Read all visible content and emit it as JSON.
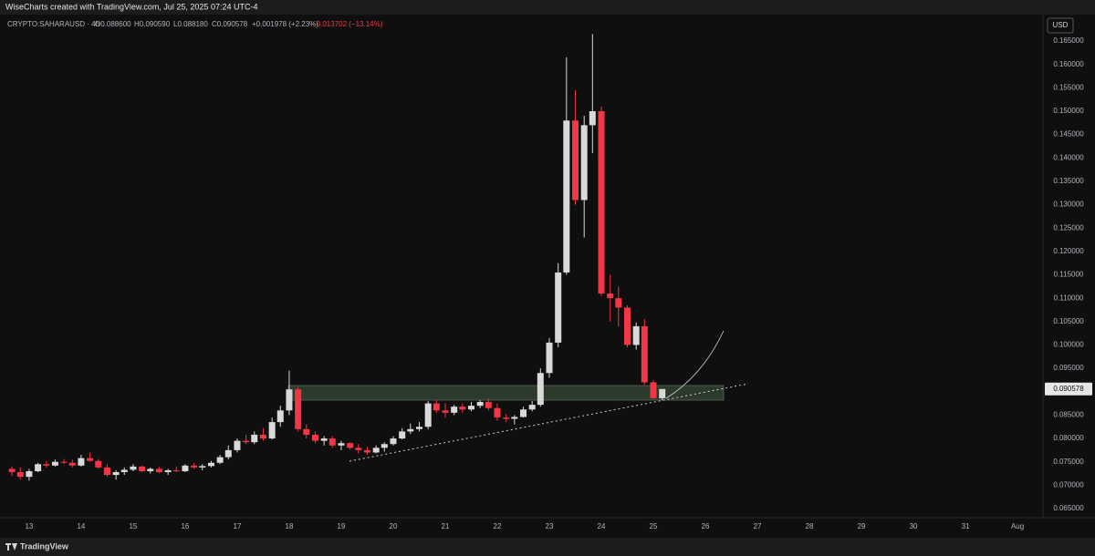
{
  "header": {
    "watermark": "WiseCharts created with TradingView.com, Jul 25, 2025 07:24 UTC-4",
    "symbol": "CRYPTO:SAHARAUSD · 4h",
    "open": "O0.088600",
    "high": "H0.090590",
    "low": "L0.088180",
    "close": "C0.090578",
    "change": "+0.001978 (+2.23%)",
    "change_red": "−0.013702 (−13.14%)"
  },
  "footer": {
    "brand": "TradingView"
  },
  "chart_data": {
    "type": "candlestick",
    "currency": "USD",
    "up_color": "#d9d9d9",
    "down_color": "#f23645",
    "x": [
      12.67,
      12.83,
      13,
      13.17,
      13.33,
      13.5,
      13.67,
      13.83,
      14,
      14.17,
      14.33,
      14.5,
      14.67,
      14.83,
      15,
      15.17,
      15.33,
      15.5,
      15.67,
      15.83,
      16,
      16.17,
      16.33,
      16.5,
      16.67,
      16.83,
      17,
      17.17,
      17.33,
      17.5,
      17.67,
      17.83,
      18,
      18.17,
      18.33,
      18.5,
      18.67,
      18.83,
      19,
      19.17,
      19.33,
      19.5,
      19.67,
      19.83,
      20,
      20.17,
      20.33,
      20.5,
      20.67,
      20.83,
      21,
      21.17,
      21.33,
      21.5,
      21.67,
      21.83,
      22,
      22.17,
      22.33,
      22.5,
      22.67,
      22.83,
      23,
      23.17,
      23.33,
      23.5,
      23.67,
      23.83,
      24,
      24.17,
      24.33,
      24.5,
      24.67,
      24.83,
      25,
      25.17
    ],
    "open": [
      0.0735,
      0.0728,
      0.0718,
      0.073,
      0.0745,
      0.0742,
      0.075,
      0.0748,
      0.0742,
      0.0758,
      0.0752,
      0.0738,
      0.0722,
      0.0728,
      0.0733,
      0.074,
      0.073,
      0.0735,
      0.0728,
      0.0732,
      0.073,
      0.0742,
      0.0738,
      0.0741,
      0.0748,
      0.076,
      0.0775,
      0.0795,
      0.0792,
      0.0808,
      0.08,
      0.0835,
      0.086,
      0.0905,
      0.082,
      0.0808,
      0.0795,
      0.08,
      0.0785,
      0.079,
      0.078,
      0.0775,
      0.077,
      0.078,
      0.0788,
      0.08,
      0.0815,
      0.082,
      0.0825,
      0.0875,
      0.086,
      0.0855,
      0.0868,
      0.0862,
      0.087,
      0.0878,
      0.0865,
      0.0845,
      0.0842,
      0.0846,
      0.0862,
      0.0872,
      0.094,
      0.1005,
      0.1155,
      0.148,
      0.131,
      0.147,
      0.15,
      0.111,
      0.11,
      0.108,
      0.1,
      0.104,
      0.092,
      0.0886
    ],
    "high": [
      0.074,
      0.0738,
      0.0735,
      0.0748,
      0.0752,
      0.0755,
      0.0756,
      0.0755,
      0.0765,
      0.077,
      0.0756,
      0.0745,
      0.0732,
      0.0738,
      0.0745,
      0.0742,
      0.0738,
      0.074,
      0.0735,
      0.074,
      0.0745,
      0.0748,
      0.0745,
      0.0752,
      0.0765,
      0.0785,
      0.08,
      0.0808,
      0.0815,
      0.0822,
      0.0845,
      0.087,
      0.0945,
      0.091,
      0.083,
      0.0815,
      0.0805,
      0.0805,
      0.0795,
      0.0792,
      0.0788,
      0.0782,
      0.0785,
      0.0792,
      0.0805,
      0.0822,
      0.0832,
      0.0835,
      0.088,
      0.0882,
      0.0875,
      0.0872,
      0.0875,
      0.0878,
      0.0882,
      0.0885,
      0.0875,
      0.0852,
      0.085,
      0.0868,
      0.088,
      0.095,
      0.1015,
      0.1175,
      0.1615,
      0.1545,
      0.149,
      0.1665,
      0.151,
      0.115,
      0.1125,
      0.1085,
      0.1048,
      0.1055,
      0.0925,
      0.09059
    ],
    "low": [
      0.072,
      0.0712,
      0.071,
      0.0728,
      0.0738,
      0.074,
      0.0745,
      0.0738,
      0.074,
      0.075,
      0.0735,
      0.0718,
      0.0712,
      0.0722,
      0.073,
      0.0728,
      0.0725,
      0.0726,
      0.0722,
      0.0728,
      0.0728,
      0.0735,
      0.0732,
      0.0738,
      0.0745,
      0.0755,
      0.077,
      0.0788,
      0.0788,
      0.0795,
      0.0798,
      0.0825,
      0.085,
      0.0815,
      0.08,
      0.079,
      0.0785,
      0.078,
      0.0775,
      0.0776,
      0.0768,
      0.0765,
      0.0768,
      0.0772,
      0.0785,
      0.0798,
      0.081,
      0.0815,
      0.082,
      0.0855,
      0.0845,
      0.085,
      0.0855,
      0.0858,
      0.0865,
      0.086,
      0.0838,
      0.0835,
      0.083,
      0.0845,
      0.0858,
      0.0868,
      0.093,
      0.0995,
      0.115,
      0.13,
      0.123,
      0.141,
      0.1105,
      0.105,
      0.104,
      0.0995,
      0.099,
      0.0915,
      0.0885,
      0.08818
    ],
    "close": [
      0.0728,
      0.0718,
      0.073,
      0.0745,
      0.0742,
      0.075,
      0.0748,
      0.0742,
      0.0758,
      0.0752,
      0.0738,
      0.0722,
      0.0728,
      0.0733,
      0.074,
      0.073,
      0.0735,
      0.0728,
      0.0732,
      0.073,
      0.0742,
      0.0738,
      0.0741,
      0.0748,
      0.076,
      0.0775,
      0.0795,
      0.0792,
      0.0808,
      0.08,
      0.0835,
      0.086,
      0.0905,
      0.082,
      0.0808,
      0.0795,
      0.08,
      0.0785,
      0.079,
      0.078,
      0.0775,
      0.077,
      0.078,
      0.0788,
      0.08,
      0.0815,
      0.082,
      0.0825,
      0.0875,
      0.086,
      0.0855,
      0.0868,
      0.0862,
      0.087,
      0.0878,
      0.0865,
      0.0845,
      0.0842,
      0.0846,
      0.0862,
      0.0872,
      0.094,
      0.1005,
      0.1155,
      0.148,
      0.131,
      0.147,
      0.15,
      0.111,
      0.11,
      0.108,
      0.1,
      0.104,
      0.092,
      0.0886,
      0.090578
    ],
    "xlim": [
      12.44,
      32.49
    ],
    "xticks": [
      13,
      14,
      15,
      16,
      17,
      18,
      19,
      20,
      21,
      22,
      23,
      24,
      25,
      26,
      27,
      28,
      29,
      30,
      31,
      {
        "value": 32,
        "label": "Aug"
      }
    ],
    "ylim": [
      0.06305,
      0.17066
    ],
    "yticks": [
      {
        "value": 0.065,
        "label": "0.065000"
      },
      {
        "value": 0.07,
        "label": "0.070000"
      },
      {
        "value": 0.075,
        "label": "0.075000"
      },
      {
        "value": 0.08,
        "label": "0.080000"
      },
      {
        "value": 0.085,
        "label": "0.085000"
      },
      {
        "value": 0.09,
        "label": "0.090000"
      },
      {
        "value": 0.095,
        "label": "0.095000"
      },
      {
        "value": 0.1,
        "label": "0.100000"
      },
      {
        "value": 0.105,
        "label": "0.105000"
      },
      {
        "value": 0.11,
        "label": "0.110000"
      },
      {
        "value": 0.115,
        "label": "0.115000"
      },
      {
        "value": 0.12,
        "label": "0.120000"
      },
      {
        "value": 0.125,
        "label": "0.125000"
      },
      {
        "value": 0.13,
        "label": "0.130000"
      },
      {
        "value": 0.135,
        "label": "0.135000"
      },
      {
        "value": 0.14,
        "label": "0.140000"
      },
      {
        "value": 0.145,
        "label": "0.145000"
      },
      {
        "value": 0.15,
        "label": "0.150000"
      },
      {
        "value": 0.155,
        "label": "0.155000"
      },
      {
        "value": 0.16,
        "label": "0.160000"
      },
      {
        "value": 0.165,
        "label": "0.165000"
      }
    ]
  }
}
